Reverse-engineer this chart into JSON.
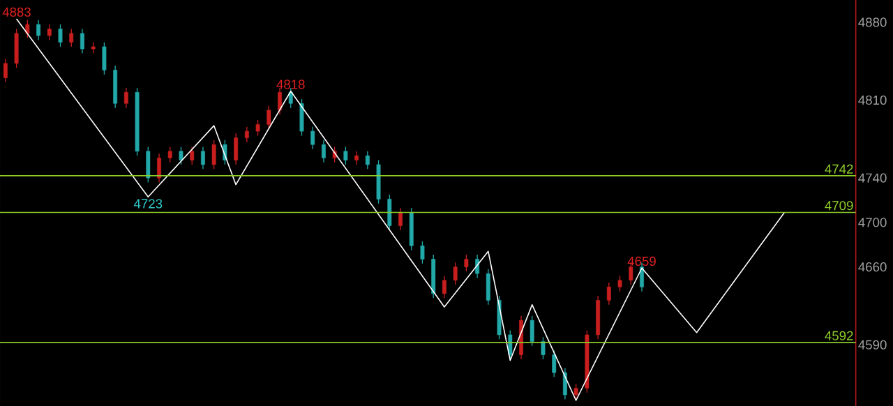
{
  "chart_data": {
    "type": "candlestick",
    "categories": [
      null,
      null,
      null,
      null,
      null,
      null,
      null,
      null,
      null,
      null,
      null,
      null,
      null,
      null,
      null,
      null,
      null,
      null,
      null,
      null,
      null,
      null,
      null,
      null,
      null,
      null,
      null,
      null,
      null,
      null,
      null,
      null,
      null,
      null,
      null,
      null,
      null,
      null,
      null,
      null,
      null,
      null,
      null,
      null,
      null,
      null,
      null,
      null,
      null,
      null,
      null,
      null,
      null,
      null,
      null,
      null,
      null,
      null,
      null,
      null,
      null,
      null,
      null,
      null,
      null,
      null,
      null,
      null,
      null,
      null,
      null,
      null,
      null,
      null,
      null,
      null,
      null,
      null
    ],
    "ohlc": [
      [
        4830,
        4847,
        4826,
        4843
      ],
      [
        4843,
        4874,
        4839,
        4870
      ],
      [
        4870,
        4882,
        4866,
        4878
      ],
      [
        4878,
        4882,
        4864,
        4868
      ],
      [
        4868,
        4878,
        4864,
        4874
      ],
      [
        4874,
        4878,
        4858,
        4862
      ],
      [
        4862,
        4874,
        4858,
        4870
      ],
      [
        4870,
        4874,
        4852,
        4856
      ],
      [
        4856,
        4862,
        4852,
        4858
      ],
      [
        4858,
        4862,
        4833,
        4837
      ],
      [
        4837,
        4841,
        4803,
        4807
      ],
      [
        4807,
        4821,
        4803,
        4817
      ],
      [
        4817,
        4821,
        4760,
        4764
      ],
      [
        4764,
        4768,
        4736,
        4740
      ],
      [
        4740,
        4762,
        4736,
        4758
      ],
      [
        4758,
        4768,
        4754,
        4764
      ],
      [
        4764,
        4768,
        4752,
        4756
      ],
      [
        4756,
        4768,
        4752,
        4764
      ],
      [
        4764,
        4768,
        4748,
        4752
      ],
      [
        4752,
        4774,
        4748,
        4770
      ],
      [
        4770,
        4774,
        4752,
        4756
      ],
      [
        4756,
        4780,
        4752,
        4776
      ],
      [
        4776,
        4786,
        4772,
        4782
      ],
      [
        4782,
        4792,
        4778,
        4788
      ],
      [
        4788,
        4805,
        4784,
        4801
      ],
      [
        4801,
        4821,
        4797,
        4817
      ],
      [
        4817,
        4821,
        4803,
        4807
      ],
      [
        4807,
        4811,
        4778,
        4782
      ],
      [
        4782,
        4786,
        4766,
        4770
      ],
      [
        4770,
        4774,
        4754,
        4758
      ],
      [
        4758,
        4768,
        4754,
        4764
      ],
      [
        4764,
        4768,
        4752,
        4756
      ],
      [
        4756,
        4764,
        4752,
        4760
      ],
      [
        4760,
        4764,
        4748,
        4752
      ],
      [
        4752,
        4756,
        4717,
        4721
      ],
      [
        4721,
        4725,
        4693,
        4697
      ],
      [
        4697,
        4713,
        4693,
        4709
      ],
      [
        4709,
        4713,
        4675,
        4679
      ],
      [
        4679,
        4683,
        4663,
        4667
      ],
      [
        4667,
        4671,
        4632,
        4636
      ],
      [
        4636,
        4652,
        4632,
        4648
      ],
      [
        4648,
        4664,
        4644,
        4660
      ],
      [
        4660,
        4671,
        4656,
        4667
      ],
      [
        4667,
        4671,
        4650,
        4654
      ],
      [
        4654,
        4658,
        4626,
        4630
      ],
      [
        4630,
        4634,
        4595,
        4599
      ],
      [
        4599,
        4603,
        4577,
        4581
      ],
      [
        4581,
        4616,
        4577,
        4612
      ],
      [
        4612,
        4616,
        4589,
        4593
      ],
      [
        4593,
        4597,
        4577,
        4581
      ],
      [
        4581,
        4585,
        4561,
        4565
      ],
      [
        4565,
        4569,
        4541,
        4545
      ],
      [
        4545,
        4555,
        4541,
        4551
      ],
      [
        4551,
        4603,
        4547,
        4599
      ],
      [
        4599,
        4634,
        4595,
        4630
      ],
      [
        4630,
        4646,
        4626,
        4642
      ],
      [
        4642,
        4652,
        4638,
        4648
      ],
      [
        4648,
        4664,
        4644,
        4660
      ],
      [
        4660,
        4664,
        4638,
        4642
      ],
      null,
      null,
      null,
      null,
      null,
      null,
      null,
      null,
      null,
      null,
      null,
      null,
      null,
      null,
      null,
      null,
      null,
      null,
      null
    ],
    "colors": [
      "#c81e1e",
      "#c81e1e",
      "#c81e1e",
      "#22a8a8",
      "#c81e1e",
      "#22a8a8",
      "#c81e1e",
      "#22a8a8",
      "#c81e1e",
      "#22a8a8",
      "#22a8a8",
      "#c81e1e",
      "#22a8a8",
      "#22a8a8",
      "#c81e1e",
      "#c81e1e",
      "#22a8a8",
      "#c81e1e",
      "#22a8a8",
      "#c81e1e",
      "#22a8a8",
      "#c81e1e",
      "#c81e1e",
      "#c81e1e",
      "#c81e1e",
      "#c81e1e",
      "#22a8a8",
      "#22a8a8",
      "#22a8a8",
      "#22a8a8",
      "#c81e1e",
      "#22a8a8",
      "#c81e1e",
      "#22a8a8",
      "#22a8a8",
      "#22a8a8",
      "#c81e1e",
      "#22a8a8",
      "#22a8a8",
      "#22a8a8",
      "#c81e1e",
      "#c81e1e",
      "#c81e1e",
      "#22a8a8",
      "#22a8a8",
      "#22a8a8",
      "#22a8a8",
      "#c81e1e",
      "#22a8a8",
      "#22a8a8",
      "#22a8a8",
      "#22a8a8",
      "#c81e1e",
      "#c81e1e",
      "#c81e1e",
      "#c81e1e",
      "#c81e1e",
      "#c81e1e",
      "#22a8a8",
      null,
      null,
      null,
      null,
      null,
      null,
      null,
      null,
      null,
      null,
      null,
      null,
      null,
      null,
      null,
      null,
      null,
      null,
      null
    ],
    "series": [
      {
        "type": "line",
        "color": "#ffffff",
        "values": [
          null,
          4883,
          null,
          null,
          null,
          null,
          null,
          null,
          null,
          null,
          null,
          null,
          null,
          4723,
          null,
          null,
          null,
          null,
          null,
          4787,
          null,
          4734,
          null,
          null,
          null,
          null,
          4818,
          null,
          null,
          null,
          null,
          null,
          null,
          null,
          null,
          null,
          null,
          null,
          null,
          null,
          4624,
          null,
          null,
          null,
          4674,
          null,
          4576,
          null,
          4626,
          null,
          null,
          null,
          4540,
          null,
          null,
          null,
          null,
          null,
          4659,
          null,
          null,
          null,
          null,
          4601,
          null,
          null,
          null,
          null,
          null,
          null,
          null,
          4709,
          null,
          null,
          null,
          null,
          null,
          null
        ]
      }
    ],
    "ylim": [
      4535,
      4900
    ],
    "yticks": [
      {
        "value": 4880,
        "label": "4880"
      },
      {
        "value": 4810,
        "label": "4810"
      },
      {
        "value": 4740,
        "label": "4740"
      },
      {
        "value": 4700,
        "label": "4700"
      },
      {
        "value": 4660,
        "label": "4660"
      },
      {
        "value": 4590,
        "label": "4590"
      }
    ],
    "tick_labels": "y",
    "ref_lines": [
      {
        "axis": "y",
        "value": 4742,
        "label": "4742",
        "color": "#8fce2a"
      },
      {
        "axis": "y",
        "value": 4709,
        "label": "4709",
        "color": "#8fce2a"
      },
      {
        "axis": "y",
        "value": 4592,
        "label": "4592",
        "color": "#8fce2a"
      }
    ],
    "annotations": [
      {
        "text": "4883",
        "y": 4883
      },
      {
        "text": "4723",
        "y": 4723
      },
      {
        "text": "4818",
        "y": 4818
      },
      {
        "text": "4659",
        "y": 4659
      }
    ]
  }
}
